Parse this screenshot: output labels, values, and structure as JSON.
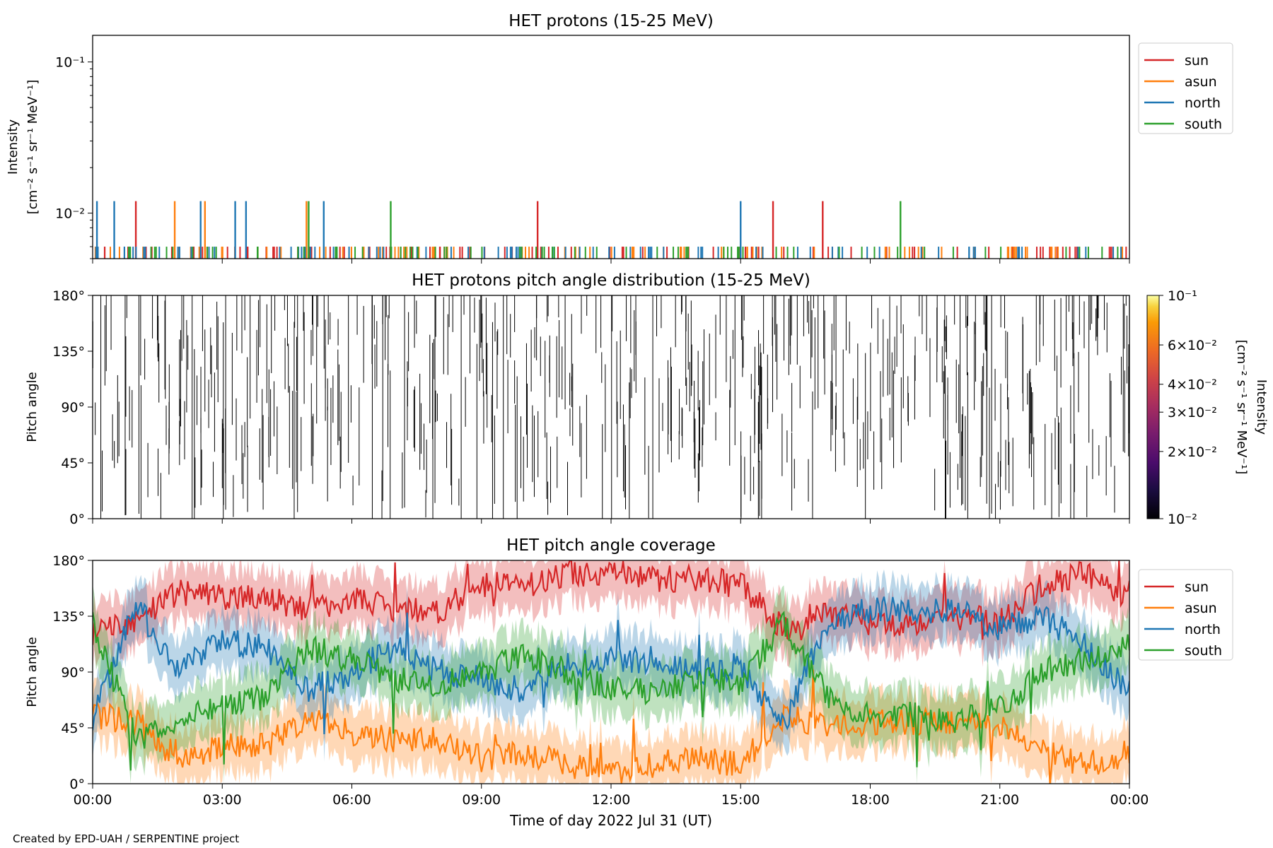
{
  "credit": "Created by EPD-UAH / SERPENTINE project",
  "xlabel": "Time of day 2022 Jul 31 (UT)",
  "x_ticks": [
    "00:00",
    "03:00",
    "06:00",
    "09:00",
    "12:00",
    "15:00",
    "18:00",
    "21:00",
    "00:00"
  ],
  "colors": {
    "sun": "#d62728",
    "asun": "#ff7f0e",
    "north": "#1f77b4",
    "south": "#2ca02c"
  },
  "chart_data": [
    {
      "type": "line",
      "title": "HET protons (15-25 MeV)",
      "ylabel_line1": "Intensity",
      "ylabel_line2": "[cm⁻² s⁻¹ sr⁻¹ MeV⁻¹]",
      "yscale": "log",
      "ylim": [
        0.005,
        0.15
      ],
      "y_ticks": [
        {
          "value": 0.1,
          "label": "10⁻¹"
        },
        {
          "value": 0.01,
          "label": "10⁻²"
        }
      ],
      "x_unit": "hours",
      "xlim": [
        0,
        24
      ],
      "legend_position": "outside-right-top",
      "baseline_value": 0.006,
      "spike_value": 0.012,
      "series": [
        {
          "name": "sun",
          "spikes": [
            1.0,
            10.3,
            15.75,
            16.9
          ],
          "baseline_events": 90
        },
        {
          "name": "asun",
          "spikes": [
            1.9,
            2.6,
            4.95
          ],
          "baseline_events": 85
        },
        {
          "name": "north",
          "spikes": [
            0.1,
            0.5,
            2.5,
            3.3,
            3.55,
            5.35,
            15.0
          ],
          "baseline_events": 85
        },
        {
          "name": "south",
          "spikes": [
            5.0,
            6.9,
            18.7
          ],
          "baseline_events": 70
        }
      ]
    },
    {
      "type": "heatmap",
      "title": "HET protons pitch angle distribution (15-25 MeV)",
      "ylabel": "Pitch angle",
      "ylim": [
        0,
        180
      ],
      "y_ticks": [
        "0°",
        "45°",
        "90°",
        "135°",
        "180°"
      ],
      "xlim": [
        0,
        24
      ],
      "colorbar": {
        "label_line1": "Intensity",
        "label_line2": "[cm⁻² s⁻¹ sr⁻¹ MeV⁻¹]",
        "scale": "log",
        "range": [
          0.01,
          0.1
        ],
        "ticks": [
          {
            "value": 0.1,
            "label": "10⁻¹"
          },
          {
            "value": 0.06,
            "label": "6×10⁻²"
          },
          {
            "value": 0.04,
            "label": "4×10⁻²"
          },
          {
            "value": 0.03,
            "label": "3×10⁻²"
          },
          {
            "value": 0.02,
            "label": "2×10⁻²"
          },
          {
            "value": 0.01,
            "label": "10⁻²"
          }
        ]
      },
      "segments": 520
    },
    {
      "type": "line",
      "title": "HET pitch angle coverage",
      "ylabel": "Pitch angle",
      "ylim": [
        0,
        180
      ],
      "y_ticks": [
        "0°",
        "45°",
        "90°",
        "135°",
        "180°"
      ],
      "xlim": [
        0,
        24
      ],
      "legend_position": "outside-right-top",
      "band_halfwidth_deg": 22,
      "series": [
        {
          "name": "sun",
          "x": [
            0,
            1,
            2,
            3,
            4,
            5,
            6,
            7,
            8,
            9,
            10,
            11,
            12,
            13,
            14,
            15,
            16,
            17,
            18,
            19,
            20,
            21,
            22,
            23,
            24
          ],
          "y": [
            120,
            130,
            155,
            150,
            150,
            140,
            150,
            140,
            140,
            160,
            160,
            170,
            170,
            165,
            165,
            160,
            125,
            140,
            130,
            130,
            135,
            130,
            160,
            170,
            150
          ]
        },
        {
          "name": "asun",
          "x": [
            0,
            1,
            2,
            3,
            4,
            5,
            6,
            7,
            8,
            9,
            10,
            11,
            12,
            13,
            14,
            15,
            16,
            17,
            18,
            19,
            20,
            21,
            22,
            23,
            24
          ],
          "y": [
            55,
            50,
            20,
            30,
            30,
            55,
            40,
            35,
            35,
            20,
            25,
            15,
            10,
            15,
            20,
            15,
            55,
            45,
            50,
            50,
            50,
            45,
            25,
            15,
            25
          ]
        },
        {
          "name": "north",
          "x": [
            0,
            1,
            2,
            3,
            4,
            5,
            6,
            7,
            8,
            9,
            10,
            11,
            12,
            13,
            14,
            15,
            16,
            17,
            18,
            19,
            20,
            21,
            22,
            23,
            24
          ],
          "y": [
            50,
            145,
            90,
            115,
            110,
            75,
            90,
            110,
            90,
            85,
            75,
            95,
            100,
            100,
            90,
            95,
            45,
            130,
            140,
            140,
            140,
            125,
            135,
            110,
            75
          ]
        },
        {
          "name": "south",
          "x": [
            0,
            1,
            2,
            3,
            4,
            5,
            6,
            7,
            8,
            9,
            10,
            11,
            12,
            13,
            14,
            15,
            16,
            17,
            18,
            19,
            20,
            21,
            22,
            23,
            24
          ],
          "y": [
            130,
            35,
            50,
            65,
            70,
            110,
            100,
            85,
            80,
            90,
            105,
            90,
            75,
            75,
            85,
            80,
            130,
            70,
            55,
            55,
            50,
            60,
            90,
            100,
            110
          ]
        }
      ]
    }
  ]
}
